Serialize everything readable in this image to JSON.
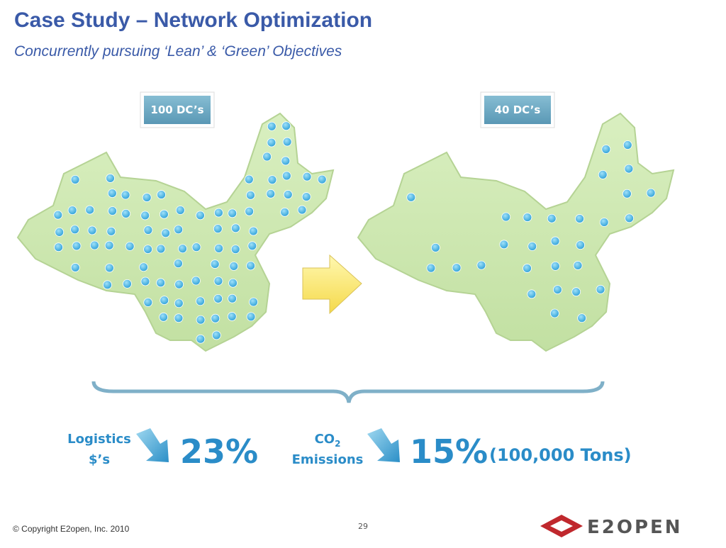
{
  "header": {
    "title": "Case Study – Network Optimization",
    "subtitle": "Concurrently pursuing ‘Lean’ & ‘Green’ Objectives"
  },
  "maps": [
    {
      "label": "100 DC’s"
    },
    {
      "label": "40 DC’s"
    }
  ],
  "results": {
    "logistics": {
      "line1": "Logistics",
      "line2": "$’s",
      "change": "23%"
    },
    "co2": {
      "main": "CO",
      "sub": "2",
      "line2": "Emissions",
      "change": "15%",
      "note": "(100,000 Tons)"
    }
  },
  "footer": {
    "copyright": "© Copyright E2open, Inc. 2010",
    "page": "29",
    "logo": "E2OPEN"
  }
}
